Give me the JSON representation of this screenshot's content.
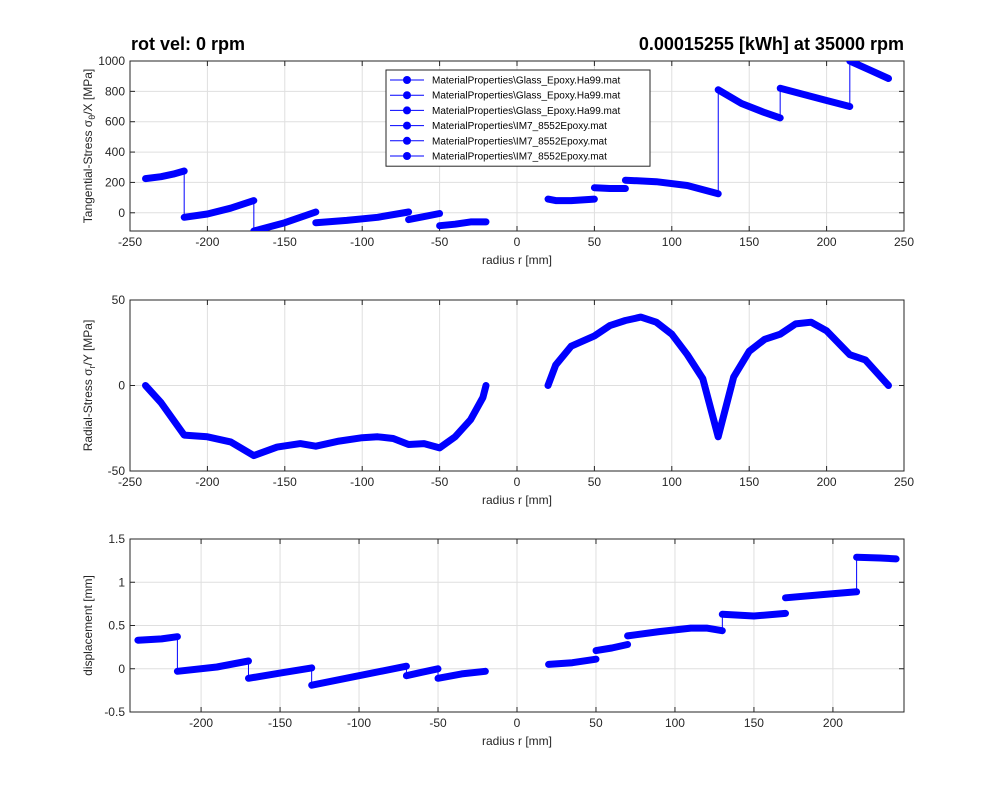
{
  "figure": {
    "title_left": "rot vel: 0 rpm",
    "title_right": "0.00015255 [kWh] at 35000 rpm",
    "line_color": "#0000ff"
  },
  "chart_data": [
    {
      "type": "line",
      "name": "tangential",
      "xlabel": "radius r [mm]",
      "ylabel_parts": [
        "Tangential-Stress σ",
        "θ",
        "/X [MPa]"
      ],
      "xlim": [
        -250,
        250
      ],
      "ylim": [
        -120,
        1000
      ],
      "xticks": [
        -250,
        -200,
        -150,
        -100,
        -50,
        0,
        50,
        100,
        150,
        200,
        250
      ],
      "yticks": [
        0,
        200,
        400,
        600,
        800,
        1000
      ],
      "grid": true,
      "legend": {
        "location": "top",
        "entries": [
          "MaterialProperties\\Glass_Epoxy.Ha99.mat",
          "MaterialProperties\\Glass_Epoxy.Ha99.mat",
          "MaterialProperties\\Glass_Epoxy.Ha99.mat",
          "MaterialProperties\\IM7_8552Epoxy.mat",
          "MaterialProperties\\IM7_8552Epoxy.mat",
          "MaterialProperties\\IM7_8552Epoxy.mat"
        ]
      },
      "segments": [
        [
          [
            -240,
            225
          ],
          [
            -230,
            238
          ],
          [
            -222,
            255
          ],
          [
            -215,
            275
          ]
        ],
        [
          [
            -215,
            -30
          ],
          [
            -200,
            -8
          ],
          [
            -185,
            30
          ],
          [
            -170,
            80
          ]
        ],
        [
          [
            -170,
            -120
          ],
          [
            -150,
            -65
          ],
          [
            -130,
            5
          ]
        ],
        [
          [
            -130,
            -65
          ],
          [
            -110,
            -50
          ],
          [
            -90,
            -30
          ],
          [
            -70,
            5
          ]
        ],
        [
          [
            -70,
            -45
          ],
          [
            -60,
            -25
          ],
          [
            -50,
            -5
          ]
        ],
        [
          [
            -50,
            -85
          ],
          [
            -40,
            -75
          ],
          [
            -30,
            -60
          ],
          [
            -20,
            -60
          ]
        ],
        [
          [
            20,
            90
          ],
          [
            25,
            80
          ],
          [
            35,
            80
          ],
          [
            50,
            90
          ]
        ],
        [
          [
            50,
            165
          ],
          [
            60,
            160
          ],
          [
            70,
            160
          ]
        ],
        [
          [
            70,
            215
          ],
          [
            90,
            205
          ],
          [
            110,
            180
          ],
          [
            130,
            125
          ]
        ],
        [
          [
            130,
            810
          ],
          [
            145,
            720
          ],
          [
            160,
            660
          ],
          [
            170,
            625
          ]
        ],
        [
          [
            170,
            820
          ],
          [
            185,
            780
          ],
          [
            200,
            740
          ],
          [
            215,
            700
          ]
        ],
        [
          [
            215,
            1000
          ],
          [
            228,
            940
          ],
          [
            240,
            885
          ]
        ]
      ],
      "jumps": [
        [
          [
            -215,
            275
          ],
          [
            -215,
            -30
          ]
        ],
        [
          [
            -170,
            80
          ],
          [
            -170,
            -120
          ]
        ],
        [
          [
            130,
            125
          ],
          [
            130,
            810
          ]
        ],
        [
          [
            170,
            625
          ],
          [
            170,
            820
          ]
        ],
        [
          [
            215,
            700
          ],
          [
            215,
            1000
          ]
        ]
      ]
    },
    {
      "type": "line",
      "name": "radial",
      "xlabel": "radius r [mm]",
      "ylabel_parts": [
        "Radial-Stress σ",
        "r",
        "/Y [MPa]"
      ],
      "xlim": [
        -250,
        250
      ],
      "ylim": [
        -50,
        50
      ],
      "xticks": [
        -250,
        -200,
        -150,
        -100,
        -50,
        0,
        50,
        100,
        150,
        200,
        250
      ],
      "yticks": [
        -50,
        0,
        50
      ],
      "grid": true,
      "segments": [
        [
          [
            -240,
            0
          ],
          [
            -230,
            -10
          ],
          [
            -215,
            -29
          ],
          [
            -200,
            -30
          ],
          [
            -185,
            -33
          ],
          [
            -170,
            -41
          ],
          [
            -155,
            -36
          ],
          [
            -140,
            -34
          ],
          [
            -130,
            -35.5
          ],
          [
            -115,
            -32.5
          ],
          [
            -100,
            -30.5
          ],
          [
            -90,
            -30
          ],
          [
            -80,
            -31
          ],
          [
            -70,
            -34.5
          ],
          [
            -60,
            -34
          ],
          [
            -50,
            -36.5
          ],
          [
            -40,
            -30
          ],
          [
            -30,
            -20
          ],
          [
            -22,
            -7
          ],
          [
            -20,
            0
          ]
        ],
        [
          [
            20,
            0
          ],
          [
            25,
            12
          ],
          [
            35,
            23
          ],
          [
            50,
            29
          ],
          [
            60,
            35
          ],
          [
            70,
            38
          ],
          [
            80,
            40
          ],
          [
            90,
            37
          ],
          [
            100,
            30
          ],
          [
            110,
            18
          ],
          [
            120,
            4
          ],
          [
            130,
            -30
          ],
          [
            140,
            5
          ],
          [
            150,
            20
          ],
          [
            160,
            27
          ],
          [
            170,
            30
          ],
          [
            180,
            36
          ],
          [
            190,
            37
          ],
          [
            200,
            32
          ],
          [
            215,
            18
          ],
          [
            225,
            15
          ],
          [
            240,
            0
          ]
        ]
      ]
    },
    {
      "type": "line",
      "name": "displacement",
      "xlabel": "radius r [mm]",
      "ylabel": "displacement [mm]",
      "xlim": [
        -245,
        245
      ],
      "ylim": [
        -0.5,
        1.5
      ],
      "xticks": [
        -200,
        -150,
        -100,
        -50,
        0,
        50,
        100,
        150,
        200
      ],
      "yticks": [
        -0.5,
        0,
        0.5,
        1,
        1.5
      ],
      "grid": true,
      "segments": [
        [
          [
            -240,
            0.33
          ],
          [
            -225,
            0.345
          ],
          [
            -215,
            0.37
          ]
        ],
        [
          [
            -215,
            -0.03
          ],
          [
            -190,
            0.02
          ],
          [
            -170,
            0.09
          ]
        ],
        [
          [
            -170,
            -0.11
          ],
          [
            -150,
            -0.05
          ],
          [
            -130,
            0.01
          ]
        ],
        [
          [
            -130,
            -0.19
          ],
          [
            -100,
            -0.08
          ],
          [
            -70,
            0.03
          ]
        ],
        [
          [
            -70,
            -0.08
          ],
          [
            -60,
            -0.04
          ],
          [
            -50,
            0.0
          ]
        ],
        [
          [
            -50,
            -0.11
          ],
          [
            -35,
            -0.06
          ],
          [
            -20,
            -0.03
          ]
        ],
        [
          [
            20,
            0.05
          ],
          [
            35,
            0.07
          ],
          [
            50,
            0.11
          ]
        ],
        [
          [
            50,
            0.21
          ],
          [
            60,
            0.24
          ],
          [
            70,
            0.28
          ]
        ],
        [
          [
            70,
            0.38
          ],
          [
            90,
            0.43
          ],
          [
            110,
            0.47
          ],
          [
            120,
            0.47
          ],
          [
            130,
            0.44
          ]
        ],
        [
          [
            130,
            0.63
          ],
          [
            150,
            0.61
          ],
          [
            170,
            0.64
          ]
        ],
        [
          [
            170,
            0.82
          ],
          [
            195,
            0.86
          ],
          [
            215,
            0.89
          ]
        ],
        [
          [
            215,
            1.29
          ],
          [
            230,
            1.28
          ],
          [
            240,
            1.27
          ]
        ]
      ],
      "jumps": [
        [
          [
            -215,
            0.37
          ],
          [
            -215,
            -0.03
          ]
        ],
        [
          [
            -170,
            0.09
          ],
          [
            -170,
            -0.11
          ]
        ],
        [
          [
            -130,
            0.01
          ],
          [
            -130,
            -0.19
          ]
        ],
        [
          [
            -70,
            0.03
          ],
          [
            -70,
            -0.08
          ]
        ],
        [
          [
            -50,
            0.0
          ],
          [
            -50,
            -0.11
          ]
        ],
        [
          [
            130,
            0.44
          ],
          [
            130,
            0.63
          ]
        ],
        [
          [
            215,
            0.89
          ],
          [
            215,
            1.29
          ]
        ]
      ]
    }
  ]
}
